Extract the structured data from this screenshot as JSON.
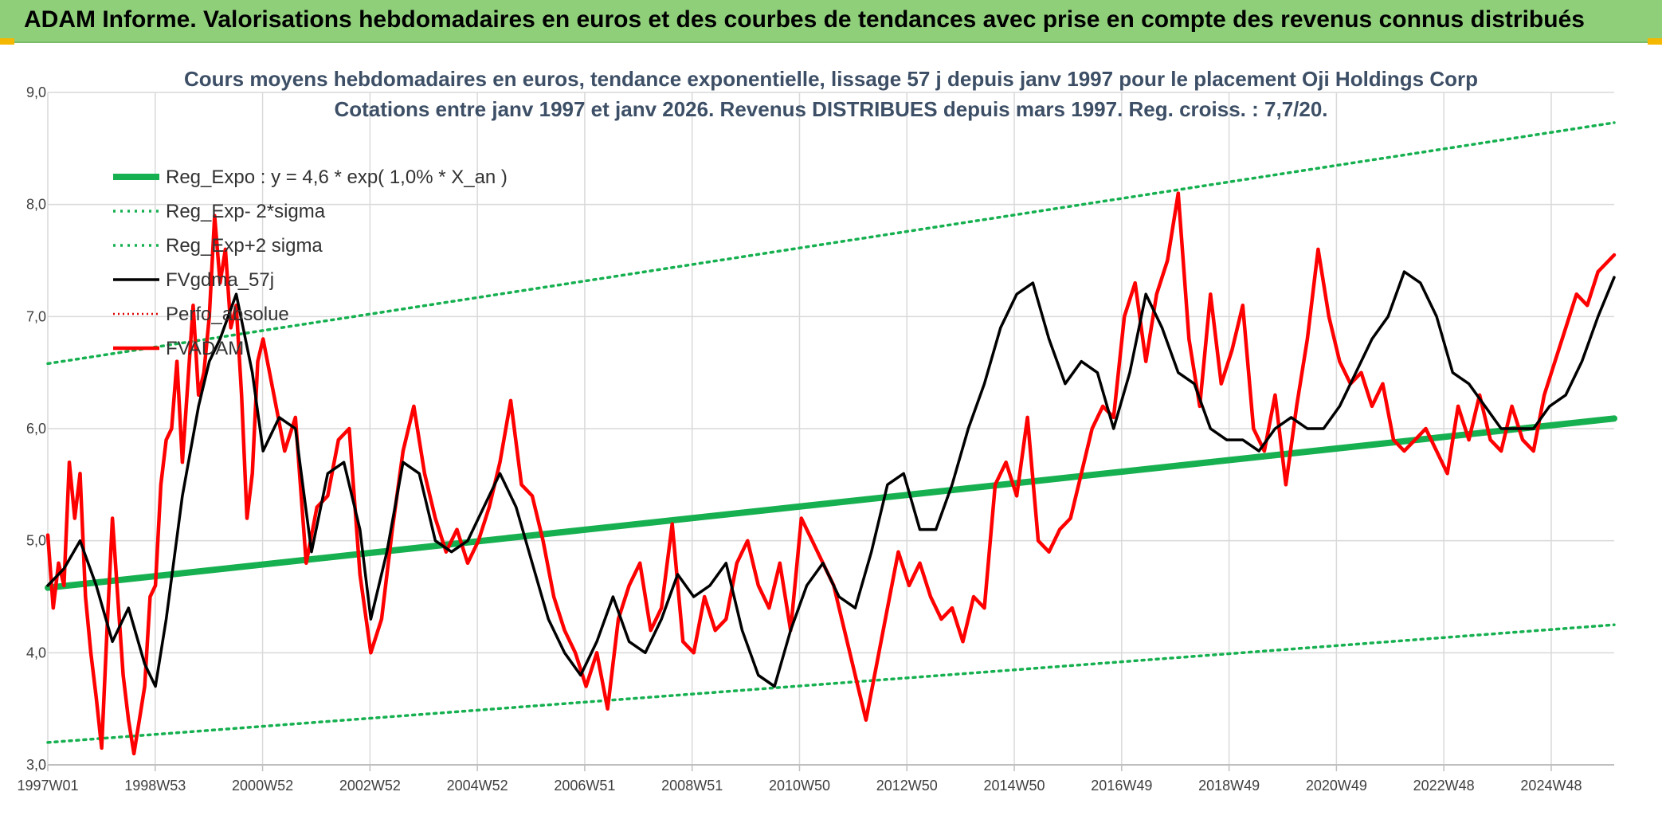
{
  "banner": {
    "title": "ADAM Informe. Valorisations hebdomadaires en euros et des courbes de tendances avec prise en compte des revenus connus distribués"
  },
  "chart_data": {
    "type": "line",
    "title": "Cours moyens hebdomadaires en euros, tendance exponentielle, lissage 57 j depuis janv 1997 pour le placement Oji Holdings Corp",
    "subtitle": "Cotations entre janv 1997 et janv 2026. Revenus DISTRIBUES depuis mars 1997. Reg. croiss. : 7,7/20.",
    "ylim": [
      3.0,
      9.0
    ],
    "y_ticks": [
      "3,0",
      "4,0",
      "5,0",
      "6,0",
      "7,0",
      "8,0",
      "9,0"
    ],
    "x_ticks": [
      "1997W01",
      "1998W53",
      "2000W52",
      "2002W52",
      "2004W52",
      "2006W51",
      "2008W51",
      "2010W50",
      "2012W50",
      "2014W50",
      "2016W49",
      "2018W49",
      "2020W49",
      "2022W48",
      "2024W48"
    ],
    "x_range_years": [
      1997.0,
      2026.1
    ],
    "grid": true,
    "legend_position": "top-left",
    "colors": {
      "reg_expo": "#16b050",
      "sigma": "#16b050",
      "gdma": "#000000",
      "perf": "#e00000",
      "adam": "#ff0000"
    },
    "series": [
      {
        "name": "Reg_Expo : y = 4,6 * exp( 1,0% *  X_an )",
        "style": "thick-solid",
        "x": [
          1997.0,
          2026.1
        ],
        "values": [
          4.58,
          6.09
        ]
      },
      {
        "name": "Reg_Exp- 2*sigma",
        "style": "dotted",
        "x": [
          1997.0,
          2026.1
        ],
        "values": [
          3.2,
          4.25
        ]
      },
      {
        "name": "Reg_Exp+2 sigma",
        "style": "dotted",
        "x": [
          1997.0,
          2026.1
        ],
        "values": [
          6.58,
          8.73
        ]
      },
      {
        "name": "FVgdma_57j",
        "style": "solid",
        "x": [
          1997.0,
          1997.3,
          1997.6,
          1997.9,
          1998.2,
          1998.5,
          1998.8,
          1999.0,
          1999.2,
          1999.5,
          1999.8,
          2000.0,
          2000.2,
          2000.5,
          2000.8,
          2001.0,
          2001.3,
          2001.6,
          2001.9,
          2002.2,
          2002.5,
          2002.8,
          2003.0,
          2003.3,
          2003.6,
          2003.9,
          2004.2,
          2004.5,
          2004.8,
          2005.1,
          2005.4,
          2005.7,
          2006.0,
          2006.3,
          2006.6,
          2006.9,
          2007.2,
          2007.5,
          2007.8,
          2008.1,
          2008.4,
          2008.7,
          2009.0,
          2009.3,
          2009.6,
          2009.9,
          2010.2,
          2010.5,
          2010.8,
          2011.1,
          2011.4,
          2011.7,
          2012.0,
          2012.3,
          2012.6,
          2012.9,
          2013.2,
          2013.5,
          2013.8,
          2014.1,
          2014.4,
          2014.7,
          2015.0,
          2015.3,
          2015.6,
          2015.9,
          2016.2,
          2016.5,
          2016.8,
          2017.1,
          2017.4,
          2017.7,
          2018.0,
          2018.3,
          2018.6,
          2018.9,
          2019.2,
          2019.5,
          2019.8,
          2020.1,
          2020.4,
          2020.7,
          2021.0,
          2021.3,
          2021.6,
          2021.9,
          2022.2,
          2022.5,
          2022.8,
          2023.1,
          2023.4,
          2023.7,
          2024.0,
          2024.3,
          2024.6,
          2024.9,
          2025.2,
          2025.5,
          2025.8,
          2026.1
        ],
        "values": [
          4.6,
          4.75,
          5.0,
          4.6,
          4.1,
          4.4,
          3.9,
          3.7,
          4.3,
          5.4,
          6.2,
          6.6,
          6.8,
          7.2,
          6.5,
          5.8,
          6.1,
          6.0,
          4.9,
          5.6,
          5.7,
          5.1,
          4.3,
          4.9,
          5.7,
          5.6,
          5.0,
          4.9,
          5.0,
          5.3,
          5.6,
          5.3,
          4.8,
          4.3,
          4.0,
          3.8,
          4.1,
          4.5,
          4.1,
          4.0,
          4.3,
          4.7,
          4.5,
          4.6,
          4.8,
          4.2,
          3.8,
          3.7,
          4.2,
          4.6,
          4.8,
          4.5,
          4.4,
          4.9,
          5.5,
          5.6,
          5.1,
          5.1,
          5.5,
          6.0,
          6.4,
          6.9,
          7.2,
          7.3,
          6.8,
          6.4,
          6.6,
          6.5,
          6.0,
          6.5,
          7.2,
          6.9,
          6.5,
          6.4,
          6.0,
          5.9,
          5.9,
          5.8,
          6.0,
          6.1,
          6.0,
          6.0,
          6.2,
          6.5,
          6.8,
          7.0,
          7.4,
          7.3,
          7.0,
          6.5,
          6.4,
          6.2,
          6.0,
          6.0,
          6.0,
          6.2,
          6.3,
          6.6,
          7.0,
          7.35
        ]
      },
      {
        "name": "Perfo_absolue",
        "style": "dotted",
        "x": [],
        "values": []
      },
      {
        "name": "FVADAM",
        "style": "thick-solid",
        "x": [
          1997.0,
          1997.1,
          1997.2,
          1997.3,
          1997.4,
          1997.5,
          1997.6,
          1997.7,
          1997.8,
          1997.9,
          1998.0,
          1998.1,
          1998.2,
          1998.3,
          1998.4,
          1998.5,
          1998.6,
          1998.7,
          1998.8,
          1998.9,
          1999.0,
          1999.1,
          1999.2,
          1999.3,
          1999.4,
          1999.5,
          1999.6,
          1999.7,
          1999.8,
          1999.9,
          2000.0,
          2000.1,
          2000.2,
          2000.3,
          2000.4,
          2000.5,
          2000.6,
          2000.7,
          2000.8,
          2000.9,
          2001.0,
          2001.2,
          2001.4,
          2001.6,
          2001.8,
          2002.0,
          2002.2,
          2002.4,
          2002.6,
          2002.8,
          2003.0,
          2003.2,
          2003.4,
          2003.6,
          2003.8,
          2004.0,
          2004.2,
          2004.4,
          2004.6,
          2004.8,
          2005.0,
          2005.2,
          2005.4,
          2005.6,
          2005.8,
          2006.0,
          2006.2,
          2006.4,
          2006.6,
          2006.8,
          2007.0,
          2007.2,
          2007.4,
          2007.6,
          2007.8,
          2008.0,
          2008.2,
          2008.4,
          2008.6,
          2008.8,
          2009.0,
          2009.2,
          2009.4,
          2009.6,
          2009.8,
          2010.0,
          2010.2,
          2010.4,
          2010.6,
          2010.8,
          2011.0,
          2011.2,
          2011.4,
          2011.6,
          2011.8,
          2012.0,
          2012.2,
          2012.4,
          2012.6,
          2012.8,
          2013.0,
          2013.2,
          2013.4,
          2013.6,
          2013.8,
          2014.0,
          2014.2,
          2014.4,
          2014.6,
          2014.8,
          2015.0,
          2015.2,
          2015.4,
          2015.6,
          2015.8,
          2016.0,
          2016.2,
          2016.4,
          2016.6,
          2016.8,
          2017.0,
          2017.2,
          2017.4,
          2017.6,
          2017.8,
          2018.0,
          2018.2,
          2018.4,
          2018.6,
          2018.8,
          2019.0,
          2019.2,
          2019.4,
          2019.6,
          2019.8,
          2020.0,
          2020.2,
          2020.4,
          2020.6,
          2020.8,
          2021.0,
          2021.2,
          2021.4,
          2021.6,
          2021.8,
          2022.0,
          2022.2,
          2022.4,
          2022.6,
          2022.8,
          2023.0,
          2023.2,
          2023.4,
          2023.6,
          2023.8,
          2024.0,
          2024.2,
          2024.4,
          2024.6,
          2024.8,
          2025.0,
          2025.2,
          2025.4,
          2025.6,
          2025.8,
          2026.1
        ],
        "values": [
          5.05,
          4.4,
          4.8,
          4.6,
          5.7,
          5.2,
          5.6,
          4.5,
          4.0,
          3.6,
          3.15,
          4.2,
          5.2,
          4.5,
          3.8,
          3.4,
          3.1,
          3.4,
          3.7,
          4.5,
          4.6,
          5.5,
          5.9,
          6.0,
          6.6,
          5.7,
          6.4,
          7.1,
          6.3,
          6.5,
          7.0,
          7.9,
          7.3,
          7.6,
          6.9,
          7.1,
          6.3,
          5.2,
          5.6,
          6.6,
          6.8,
          6.3,
          5.8,
          6.1,
          4.8,
          5.3,
          5.4,
          5.9,
          6.0,
          4.7,
          4.0,
          4.3,
          5.1,
          5.8,
          6.2,
          5.6,
          5.2,
          4.9,
          5.1,
          4.8,
          5.0,
          5.3,
          5.7,
          6.25,
          5.5,
          5.4,
          5.0,
          4.5,
          4.2,
          4.0,
          3.7,
          4.0,
          3.5,
          4.3,
          4.6,
          4.8,
          4.2,
          4.4,
          5.15,
          4.1,
          4.0,
          4.5,
          4.2,
          4.3,
          4.8,
          5.0,
          4.6,
          4.4,
          4.8,
          4.2,
          5.2,
          5.0,
          4.8,
          4.6,
          4.2,
          3.8,
          3.4,
          3.9,
          4.4,
          4.9,
          4.6,
          4.8,
          4.5,
          4.3,
          4.4,
          4.1,
          4.5,
          4.4,
          5.5,
          5.7,
          5.4,
          6.1,
          5.0,
          4.9,
          5.1,
          5.2,
          5.6,
          6.0,
          6.2,
          6.1,
          7.0,
          7.3,
          6.6,
          7.2,
          7.5,
          8.1,
          6.8,
          6.2,
          7.2,
          6.4,
          6.7,
          7.1,
          6.0,
          5.8,
          6.3,
          5.5,
          6.2,
          6.8,
          7.6,
          7.0,
          6.6,
          6.4,
          6.5,
          6.2,
          6.4,
          5.9,
          5.8,
          5.9,
          6.0,
          5.8,
          5.6,
          6.2,
          5.9,
          6.3,
          5.9,
          5.8,
          6.2,
          5.9,
          5.8,
          6.3,
          6.6,
          6.9,
          7.2,
          7.1,
          7.4,
          7.55
        ]
      }
    ]
  }
}
